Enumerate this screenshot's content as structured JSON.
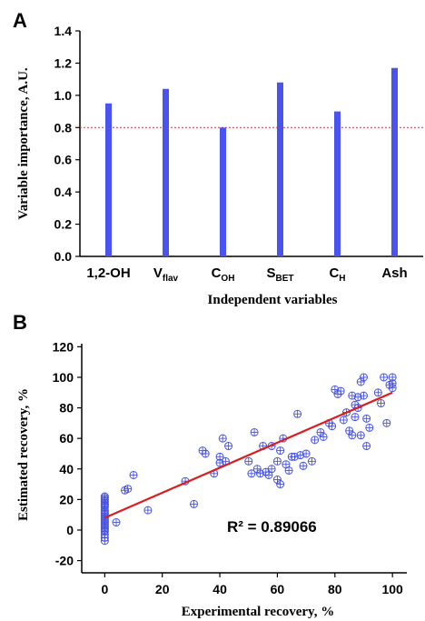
{
  "panels": {
    "a": "A",
    "b": "B"
  },
  "chart_data": [
    {
      "type": "bar",
      "categories": [
        "1,2-OH",
        "Vflav",
        "COH",
        "SBET",
        "CH",
        "Ash"
      ],
      "category_labels": [
        {
          "main": "1,2-OH",
          "sub": ""
        },
        {
          "main": "V",
          "sub": "flav"
        },
        {
          "main": "C",
          "sub": "OH"
        },
        {
          "main": "S",
          "sub": "BET"
        },
        {
          "main": "C",
          "sub": "H"
        },
        {
          "main": "Ash",
          "sub": ""
        }
      ],
      "values": [
        0.95,
        1.04,
        0.8,
        1.08,
        0.9,
        1.17
      ],
      "ylim": [
        0.0,
        1.4
      ],
      "yticks": [
        "0.0",
        "0.2",
        "0.4",
        "0.6",
        "0.8",
        "1.0",
        "1.2",
        "1.4"
      ],
      "ylabel": "Variable importance, A.U.",
      "xlabel": "Independent variables",
      "reference_line": 0.8,
      "colors": {
        "bar": "#4a52f0",
        "reference": "#d23a3a"
      }
    },
    {
      "type": "scatter",
      "xlabel": "Experimental recovery, %",
      "ylabel": "Estimated recovery, %",
      "xlim": [
        -8,
        105
      ],
      "ylim": [
        -28,
        122
      ],
      "xticks": [
        "0",
        "20",
        "40",
        "60",
        "80",
        "100"
      ],
      "yticks": [
        "-20",
        "0",
        "20",
        "40",
        "60",
        "80",
        "100",
        "120"
      ],
      "annotation": "R² = 0.89066",
      "fit_line": {
        "x": [
          0,
          100
        ],
        "y": [
          8,
          90
        ]
      },
      "colors": {
        "marker": "#4a55e0",
        "fit": "#d81e1e"
      },
      "points": [
        [
          0,
          22
        ],
        [
          0,
          21
        ],
        [
          0,
          20
        ],
        [
          0,
          19
        ],
        [
          0,
          18
        ],
        [
          0,
          17
        ],
        [
          0,
          16
        ],
        [
          0,
          15
        ],
        [
          0,
          13
        ],
        [
          0,
          12
        ],
        [
          0,
          11
        ],
        [
          0,
          10
        ],
        [
          0,
          9
        ],
        [
          0,
          8
        ],
        [
          0,
          7
        ],
        [
          0,
          6
        ],
        [
          0,
          5
        ],
        [
          0,
          4
        ],
        [
          0,
          3
        ],
        [
          0,
          2
        ],
        [
          0,
          1
        ],
        [
          0,
          0
        ],
        [
          0,
          -1
        ],
        [
          0,
          -3
        ],
        [
          0,
          -5
        ],
        [
          0,
          -7
        ],
        [
          4,
          5
        ],
        [
          7,
          26
        ],
        [
          8,
          27
        ],
        [
          10,
          36
        ],
        [
          15,
          13
        ],
        [
          28,
          32
        ],
        [
          31,
          17
        ],
        [
          34,
          52
        ],
        [
          35,
          50
        ],
        [
          38,
          37
        ],
        [
          40,
          44
        ],
        [
          40,
          48
        ],
        [
          41,
          60
        ],
        [
          42,
          45
        ],
        [
          43,
          55
        ],
        [
          50,
          45
        ],
        [
          51,
          37
        ],
        [
          52,
          64
        ],
        [
          53,
          40
        ],
        [
          54,
          37
        ],
        [
          55,
          55
        ],
        [
          56,
          38
        ],
        [
          57,
          36
        ],
        [
          58,
          40
        ],
        [
          58,
          55
        ],
        [
          60,
          45
        ],
        [
          60,
          33
        ],
        [
          61,
          52
        ],
        [
          61,
          30
        ],
        [
          62,
          60
        ],
        [
          63,
          43
        ],
        [
          64,
          39
        ],
        [
          65,
          48
        ],
        [
          66,
          48
        ],
        [
          67,
          76
        ],
        [
          68,
          49
        ],
        [
          69,
          42
        ],
        [
          70,
          50
        ],
        [
          72,
          45
        ],
        [
          73,
          59
        ],
        [
          75,
          64
        ],
        [
          76,
          61
        ],
        [
          78,
          70
        ],
        [
          79,
          68
        ],
        [
          80,
          92
        ],
        [
          81,
          89
        ],
        [
          82,
          91
        ],
        [
          83,
          72
        ],
        [
          84,
          77
        ],
        [
          85,
          65
        ],
        [
          86,
          88
        ],
        [
          86,
          62
        ],
        [
          87,
          74
        ],
        [
          87,
          82
        ],
        [
          88,
          87
        ],
        [
          88,
          80
        ],
        [
          89,
          97
        ],
        [
          89,
          62
        ],
        [
          90,
          100
        ],
        [
          90,
          88
        ],
        [
          91,
          73
        ],
        [
          91,
          55
        ],
        [
          92,
          67
        ],
        [
          95,
          90
        ],
        [
          96,
          83
        ],
        [
          97,
          100
        ],
        [
          98,
          70
        ],
        [
          99,
          95
        ],
        [
          100,
          100
        ],
        [
          100,
          96
        ],
        [
          100,
          93
        ]
      ]
    }
  ]
}
